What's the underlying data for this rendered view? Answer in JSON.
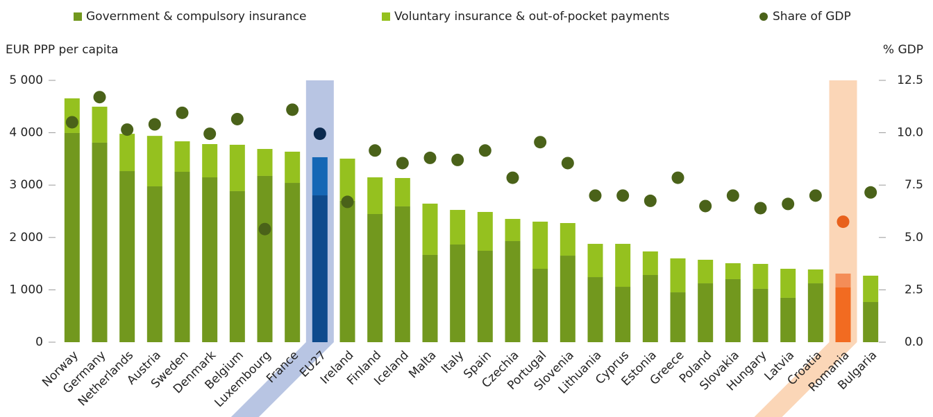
{
  "chart_data": {
    "type": "bar",
    "stacked": true,
    "ylabel": "EUR PPP per capita",
    "y2label": "% GDP",
    "categories": [
      "Norway",
      "Germany",
      "Netherlands",
      "Austria",
      "Sweden",
      "Denmark",
      "Belgium",
      "Luxembourg",
      "France",
      "EU27",
      "Ireland",
      "Finland",
      "Iceland",
      "Malta",
      "Italy",
      "Spain",
      "Czechia",
      "Portugal",
      "Slovenia",
      "Lithuania",
      "Cyprus",
      "Estonia",
      "Greece",
      "Poland",
      "Slovakia",
      "Hungary",
      "Latvia",
      "Croatia",
      "Romania",
      "Bulgaria"
    ],
    "series": [
      {
        "name": "Government & compulsory insurance",
        "color": "#72981e",
        "values": [
          3995,
          3810,
          3267,
          2976,
          3254,
          3148,
          2884,
          3175,
          3042,
          2804,
          2700,
          2447,
          2593,
          1667,
          1865,
          1746,
          1931,
          1402,
          1653,
          1243,
          1058,
          1283,
          952,
          1124,
          1204,
          1019,
          847,
          1124,
          1045,
          767
        ]
      },
      {
        "name": "Voluntary insurance & out-of-pocket payments",
        "color": "#95c11f",
        "values": [
          661,
          687,
          713,
          964,
          582,
          635,
          886,
          515,
          596,
          728,
          805,
          701,
          542,
          979,
          661,
          741,
          423,
          900,
          622,
          635,
          820,
          450,
          648,
          450,
          304,
          476,
          555,
          265,
          265,
          503
        ]
      },
      {
        "name": "Share of GDP",
        "color": "#4a6219",
        "axis": "y2",
        "marker": "circle",
        "values": [
          10.5,
          11.7,
          10.15,
          10.4,
          10.95,
          9.95,
          10.65,
          5.4,
          11.1,
          9.95,
          6.7,
          9.15,
          8.55,
          8.8,
          8.7,
          9.15,
          7.85,
          9.55,
          8.55,
          7.0,
          7.0,
          6.75,
          7.85,
          6.5,
          7.0,
          6.4,
          6.6,
          7.0,
          5.75,
          7.15
        ]
      }
    ],
    "highlights": [
      {
        "category": "EU27",
        "band_color": "#b8c5e3",
        "colors": [
          "#0e4a8c",
          "#1567b5",
          "#0b2a4e"
        ]
      },
      {
        "category": "Romania",
        "band_color": "#fbd6b7",
        "colors": [
          "#f26b21",
          "#f48d57",
          "#e8611c"
        ]
      }
    ],
    "ylim": [
      0,
      5000
    ],
    "yticks": [
      0,
      {
        "value": 1000,
        "label": "1 000"
      },
      {
        "value": 2000,
        "label": "2 000"
      },
      {
        "value": 3000,
        "label": "3 000"
      },
      {
        "value": 4000,
        "label": "4 000"
      },
      {
        "value": 5000,
        "label": "5 000"
      }
    ],
    "y2lim": [
      0,
      12.5
    ],
    "y2ticks": [
      {
        "value": 0,
        "label": "0.0"
      },
      2.5,
      {
        "value": 5,
        "label": "5.0"
      },
      7.5,
      {
        "value": 10,
        "label": "10.0"
      },
      12.5
    ],
    "grid": false
  }
}
